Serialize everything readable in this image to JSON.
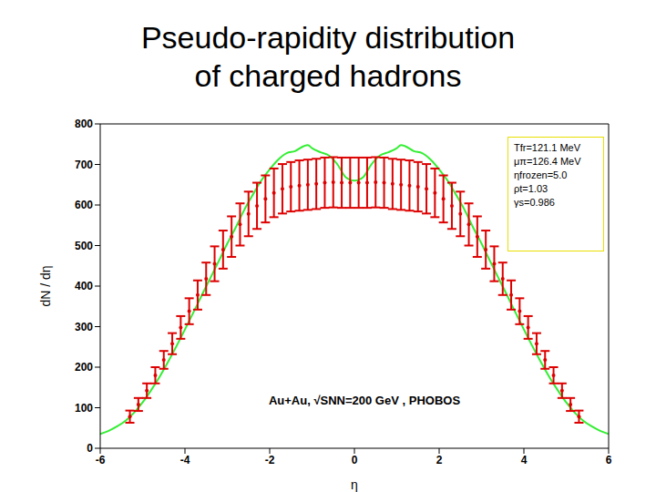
{
  "chart_data": {
    "type": "scatter",
    "title": "Pseudo-rapidity distribution\nof charged hadrons",
    "x_label": "η",
    "y_label": "dN / dη",
    "annotations": [
      "Au+Au, √SNN=200 GeV , PHOBOS"
    ],
    "parameters": [
      "Tfr=121.1 MeV",
      "μπ=126.4 MeV",
      "ηfrozen=5.0",
      "ρt=1.03",
      "γs=0.986"
    ],
    "xlim": [
      -6,
      6
    ],
    "xticks": [
      -6,
      -4,
      -2,
      0,
      2,
      4,
      6
    ],
    "ylim": [
      0,
      800
    ],
    "yticks": [
      0,
      100,
      200,
      300,
      400,
      500,
      600,
      700,
      800
    ],
    "grid": false,
    "series": [
      {
        "type": "line",
        "color": "#33ee33",
        "line_style": "solid",
        "marker": "none",
        "x": [
          -6,
          -5.8,
          -5.6,
          -5.4,
          -5.2,
          -5,
          -4.8,
          -4.6,
          -4.4,
          -4.2,
          -4,
          -3.8,
          -3.6,
          -3.4,
          -3.2,
          -3,
          -2.8,
          -2.6,
          -2.4,
          -2.2,
          -2,
          -1.8,
          -1.6,
          -1.4,
          -1.2,
          -1.1,
          -1,
          -0.8,
          -0.6,
          -0.4,
          -0.2,
          0,
          0.2,
          0.4,
          0.6,
          0.8,
          1,
          1.1,
          1.2,
          1.4,
          1.6,
          1.8,
          2,
          2.2,
          2.4,
          2.6,
          2.8,
          3,
          3.2,
          3.4,
          3.6,
          3.8,
          4,
          4.2,
          4.4,
          4.6,
          4.8,
          5,
          5.2,
          5.4,
          5.6,
          5.8,
          6
        ],
        "values": [
          35,
          43,
          54,
          68,
          88,
          113,
          143,
          176,
          213,
          252,
          293,
          335,
          378,
          420,
          462,
          505,
          545,
          588,
          625,
          660,
          688,
          712,
          728,
          733,
          745,
          748,
          740,
          730,
          722,
          700,
          668,
          660,
          668,
          700,
          722,
          730,
          740,
          748,
          745,
          733,
          728,
          712,
          688,
          660,
          625,
          588,
          545,
          505,
          462,
          420,
          378,
          335,
          293,
          252,
          213,
          176,
          143,
          113,
          88,
          68,
          54,
          43,
          35
        ]
      },
      {
        "type": "scatter",
        "color": "#dd0000",
        "marker": "circle",
        "x": [
          -5.3,
          -5.1,
          -4.9,
          -4.7,
          -4.5,
          -4.3,
          -4.1,
          -3.9,
          -3.7,
          -3.5,
          -3.3,
          -3.1,
          -2.9,
          -2.7,
          -2.5,
          -2.3,
          -2.1,
          -1.9,
          -1.7,
          -1.5,
          -1.3,
          -1.1,
          -0.9,
          -0.7,
          -0.5,
          -0.3,
          -0.1,
          0.1,
          0.3,
          0.5,
          0.7,
          0.9,
          1.1,
          1.3,
          1.5,
          1.7,
          1.9,
          2.1,
          2.3,
          2.5,
          2.7,
          2.9,
          3.1,
          3.3,
          3.5,
          3.7,
          3.9,
          4.1,
          4.3,
          4.5,
          4.7,
          4.9,
          5.1,
          5.3
        ],
        "values": [
          78,
          108,
          142,
          180,
          218,
          258,
          298,
          338,
          378,
          418,
          455,
          490,
          522,
          552,
          578,
          598,
          615,
          630,
          640,
          645,
          648,
          650,
          652,
          655,
          656,
          655,
          655,
          655,
          655,
          656,
          655,
          652,
          650,
          648,
          645,
          640,
          630,
          615,
          598,
          578,
          552,
          522,
          490,
          455,
          418,
          378,
          338,
          298,
          258,
          218,
          180,
          142,
          108,
          78
        ],
        "errors": [
          15,
          16,
          18,
          20,
          22,
          26,
          28,
          32,
          36,
          40,
          43,
          47,
          50,
          52,
          55,
          57,
          58,
          60,
          61,
          61,
          62,
          62,
          62,
          62,
          62,
          62,
          62,
          62,
          62,
          62,
          62,
          62,
          62,
          62,
          61,
          61,
          60,
          58,
          57,
          55,
          52,
          50,
          47,
          43,
          40,
          36,
          32,
          28,
          26,
          22,
          20,
          18,
          16,
          15
        ]
      }
    ]
  }
}
